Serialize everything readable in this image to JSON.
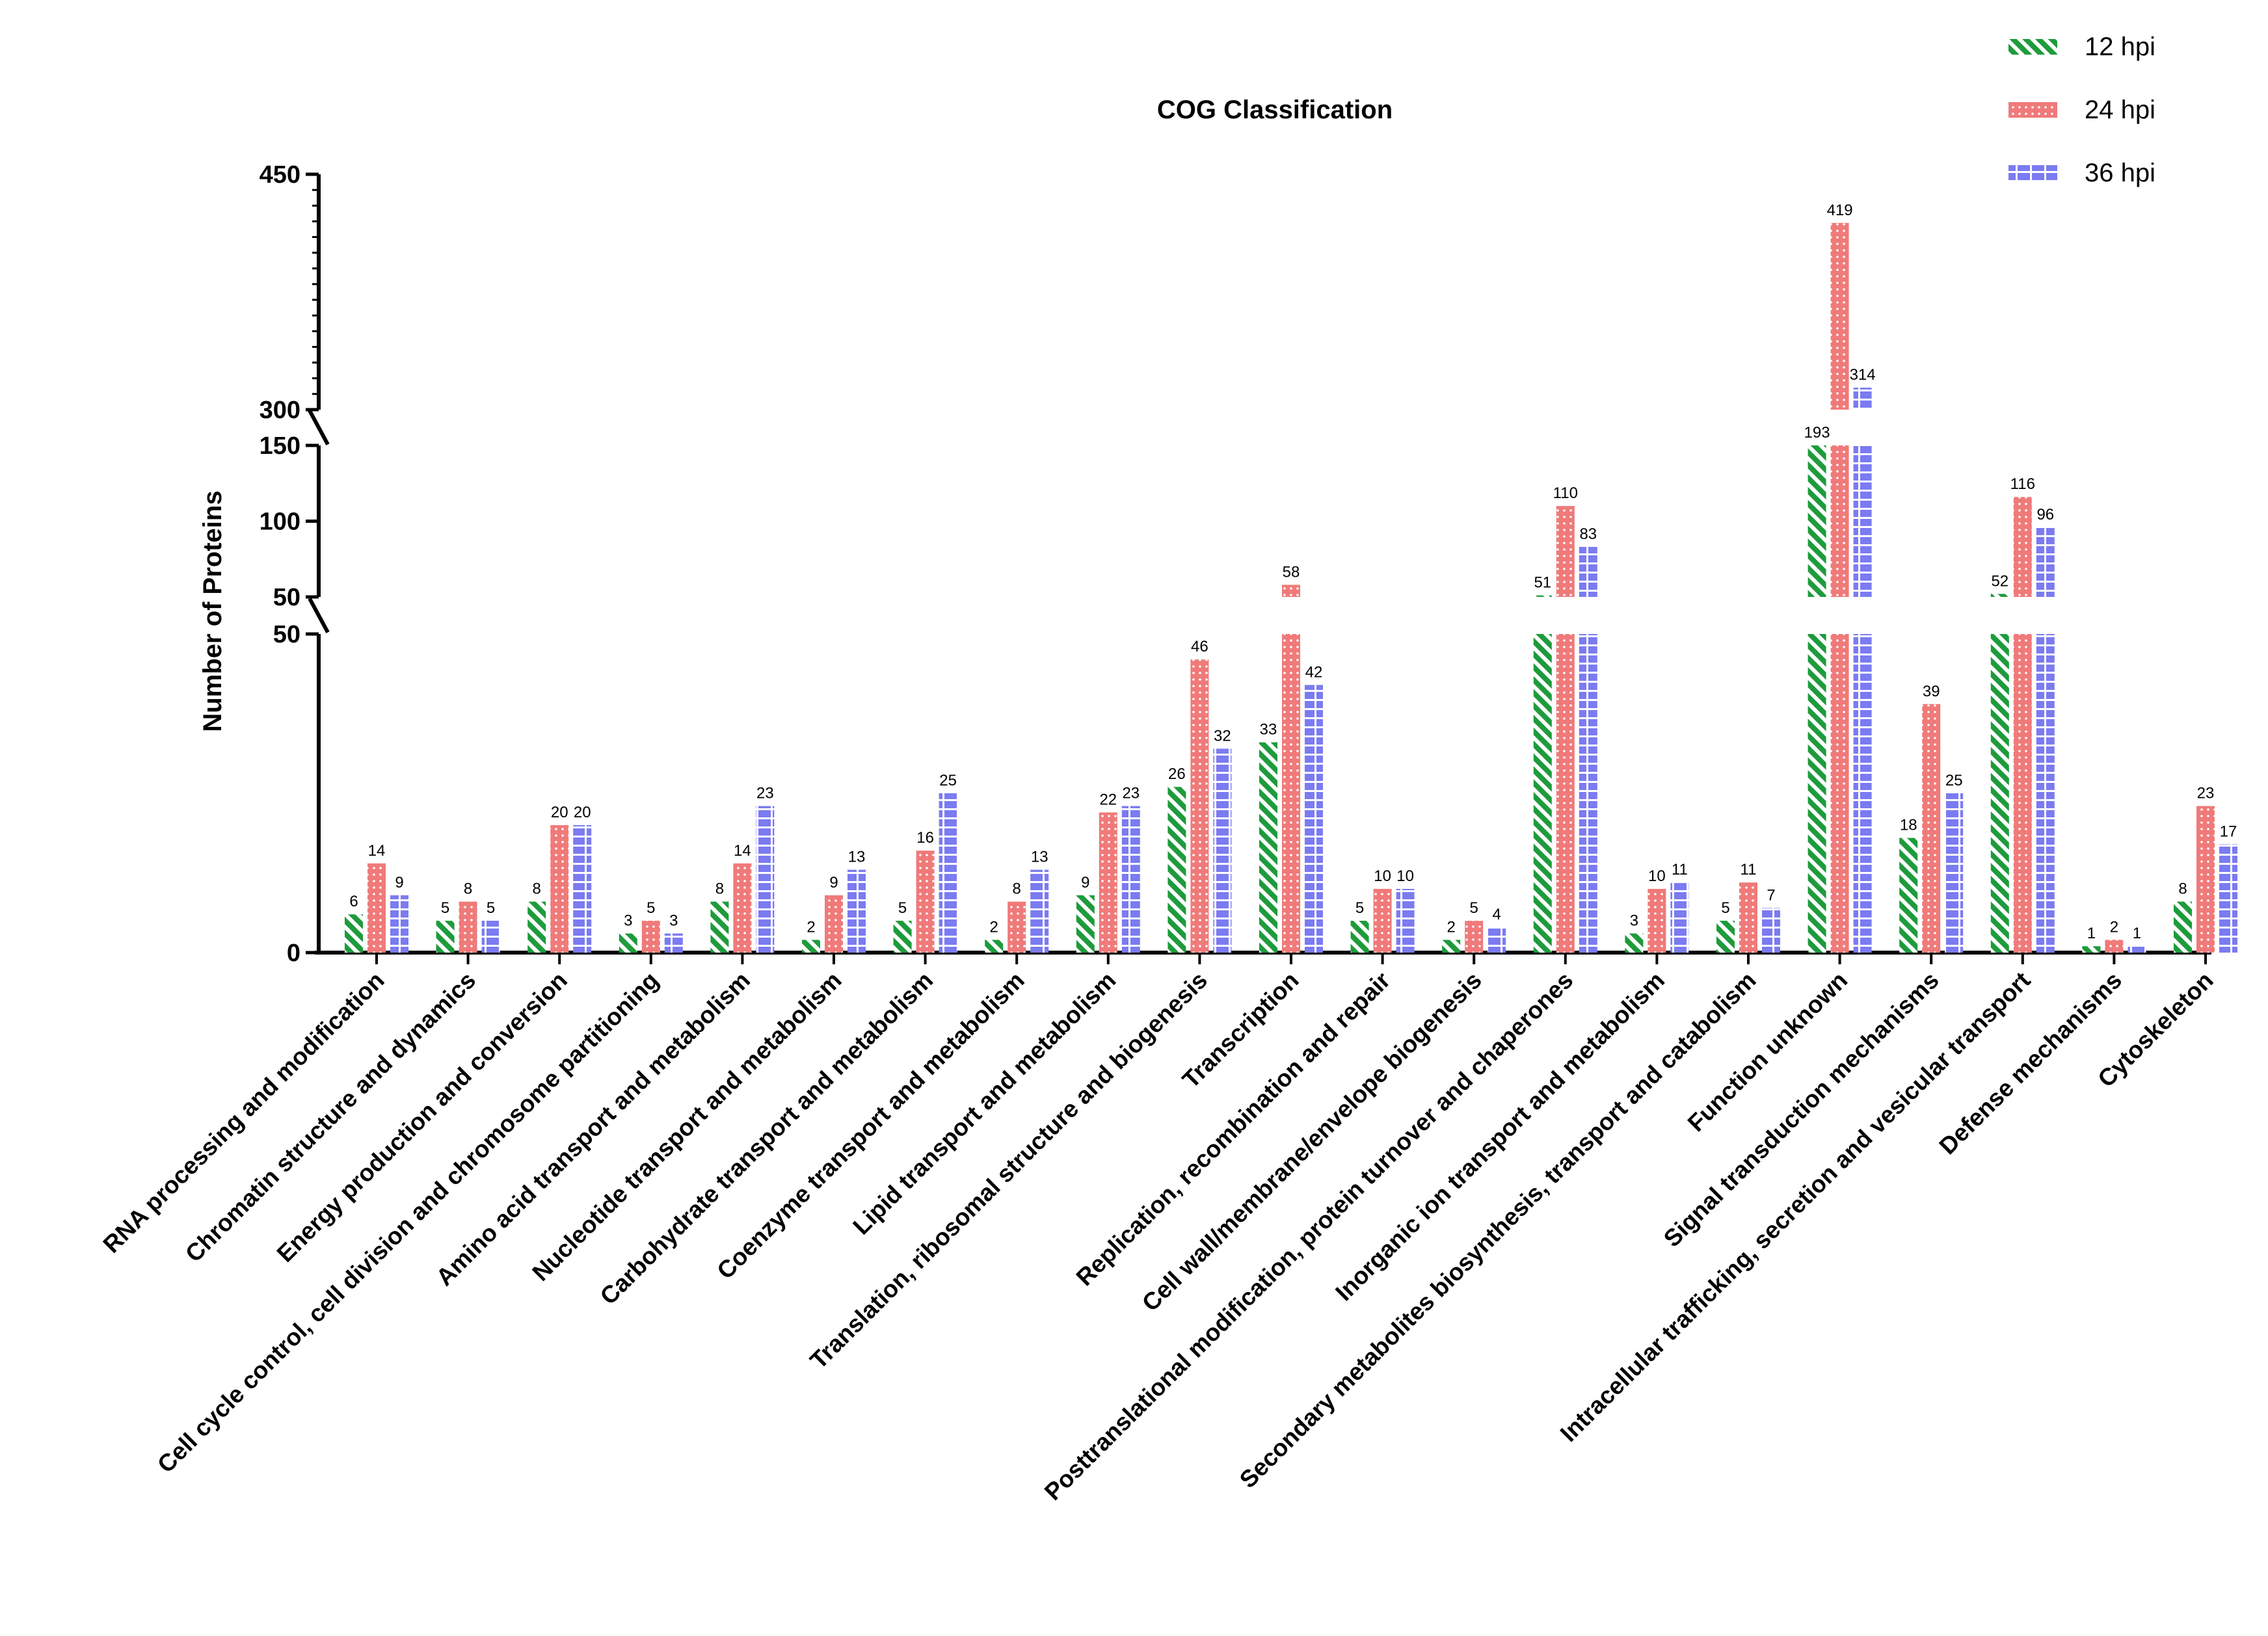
{
  "chart_data": {
    "type": "bar",
    "title": "COG Classification",
    "xlabel": "",
    "ylabel": "Number of Proteins",
    "y_axis_broken": true,
    "y_segments": [
      {
        "range": [
          0,
          50
        ],
        "ticks": [
          "0",
          "50"
        ]
      },
      {
        "range": [
          50,
          150
        ],
        "ticks": [
          "50",
          "100",
          "150"
        ]
      },
      {
        "range": [
          300,
          450
        ],
        "ticks": [
          "300",
          "450"
        ]
      }
    ],
    "legend_position": "top-right",
    "categories": [
      "RNA processing and modification",
      "Chromatin structure and dynamics",
      "Energy production and conversion",
      "Cell cycle control, cell division and chromosome partitioning",
      "Amino acid transport and metabolism",
      "Nucleotide transport and metabolism",
      "Carbohydrate transport and metabolism",
      "Coenzyme transport and metabolism",
      "Lipid transport and metabolism",
      "Translation, ribosomal structure and biogenesis",
      "Transcription",
      "Replication, recombination and repair",
      "Cell wall/membrane/envelope biogenesis",
      "Posttranslational modification, protein turnover and chaperones",
      "Inorganic ion transport and metabolism",
      "Secondary metabolites biosynthesis, transport and catabolism",
      "Function unknown",
      "Signal transduction mechanisms",
      "Intracellular trafficking, secretion and vesicular transport",
      "Defense mechanisms",
      "Cytoskeleton"
    ],
    "series": [
      {
        "name": "12 hpi",
        "color": "#1e9b3c",
        "pattern": "diagonal-stripes",
        "values": [
          6,
          5,
          8,
          3,
          8,
          2,
          5,
          2,
          9,
          26,
          33,
          5,
          2,
          51,
          3,
          5,
          193,
          18,
          52,
          1,
          8
        ]
      },
      {
        "name": "24 hpi",
        "color": "#f07a7a",
        "pattern": "dots",
        "values": [
          14,
          8,
          20,
          5,
          14,
          9,
          16,
          8,
          22,
          46,
          58,
          10,
          5,
          110,
          10,
          11,
          419,
          39,
          116,
          2,
          23
        ]
      },
      {
        "name": "36 hpi",
        "color": "#7b7bf2",
        "pattern": "dashes",
        "values": [
          9,
          5,
          20,
          3,
          23,
          13,
          25,
          13,
          23,
          32,
          42,
          10,
          4,
          83,
          11,
          7,
          314,
          25,
          96,
          1,
          17
        ]
      }
    ]
  }
}
